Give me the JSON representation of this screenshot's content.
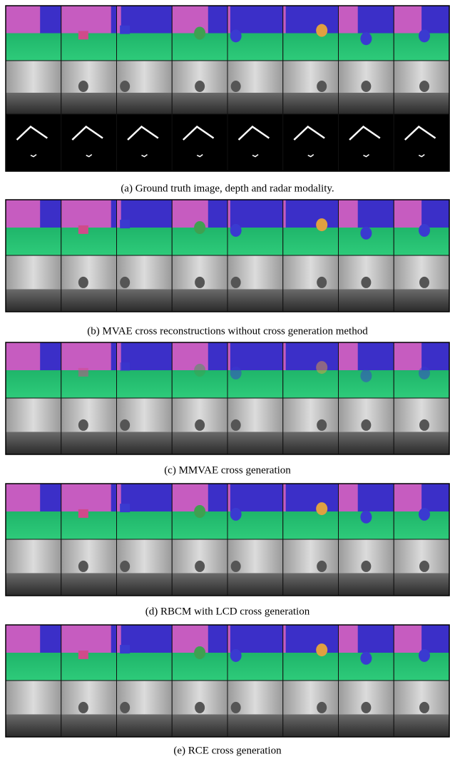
{
  "panels": [
    {
      "caption": "(a) Ground truth image, depth and radar modality."
    },
    {
      "caption": "(b) MVAE cross reconstructions without cross generation method"
    },
    {
      "caption": "(c) MMVAE cross generation"
    },
    {
      "caption": "(d) RBCM with LCD cross generation"
    },
    {
      "caption": "(e) RCE cross generation"
    }
  ]
}
